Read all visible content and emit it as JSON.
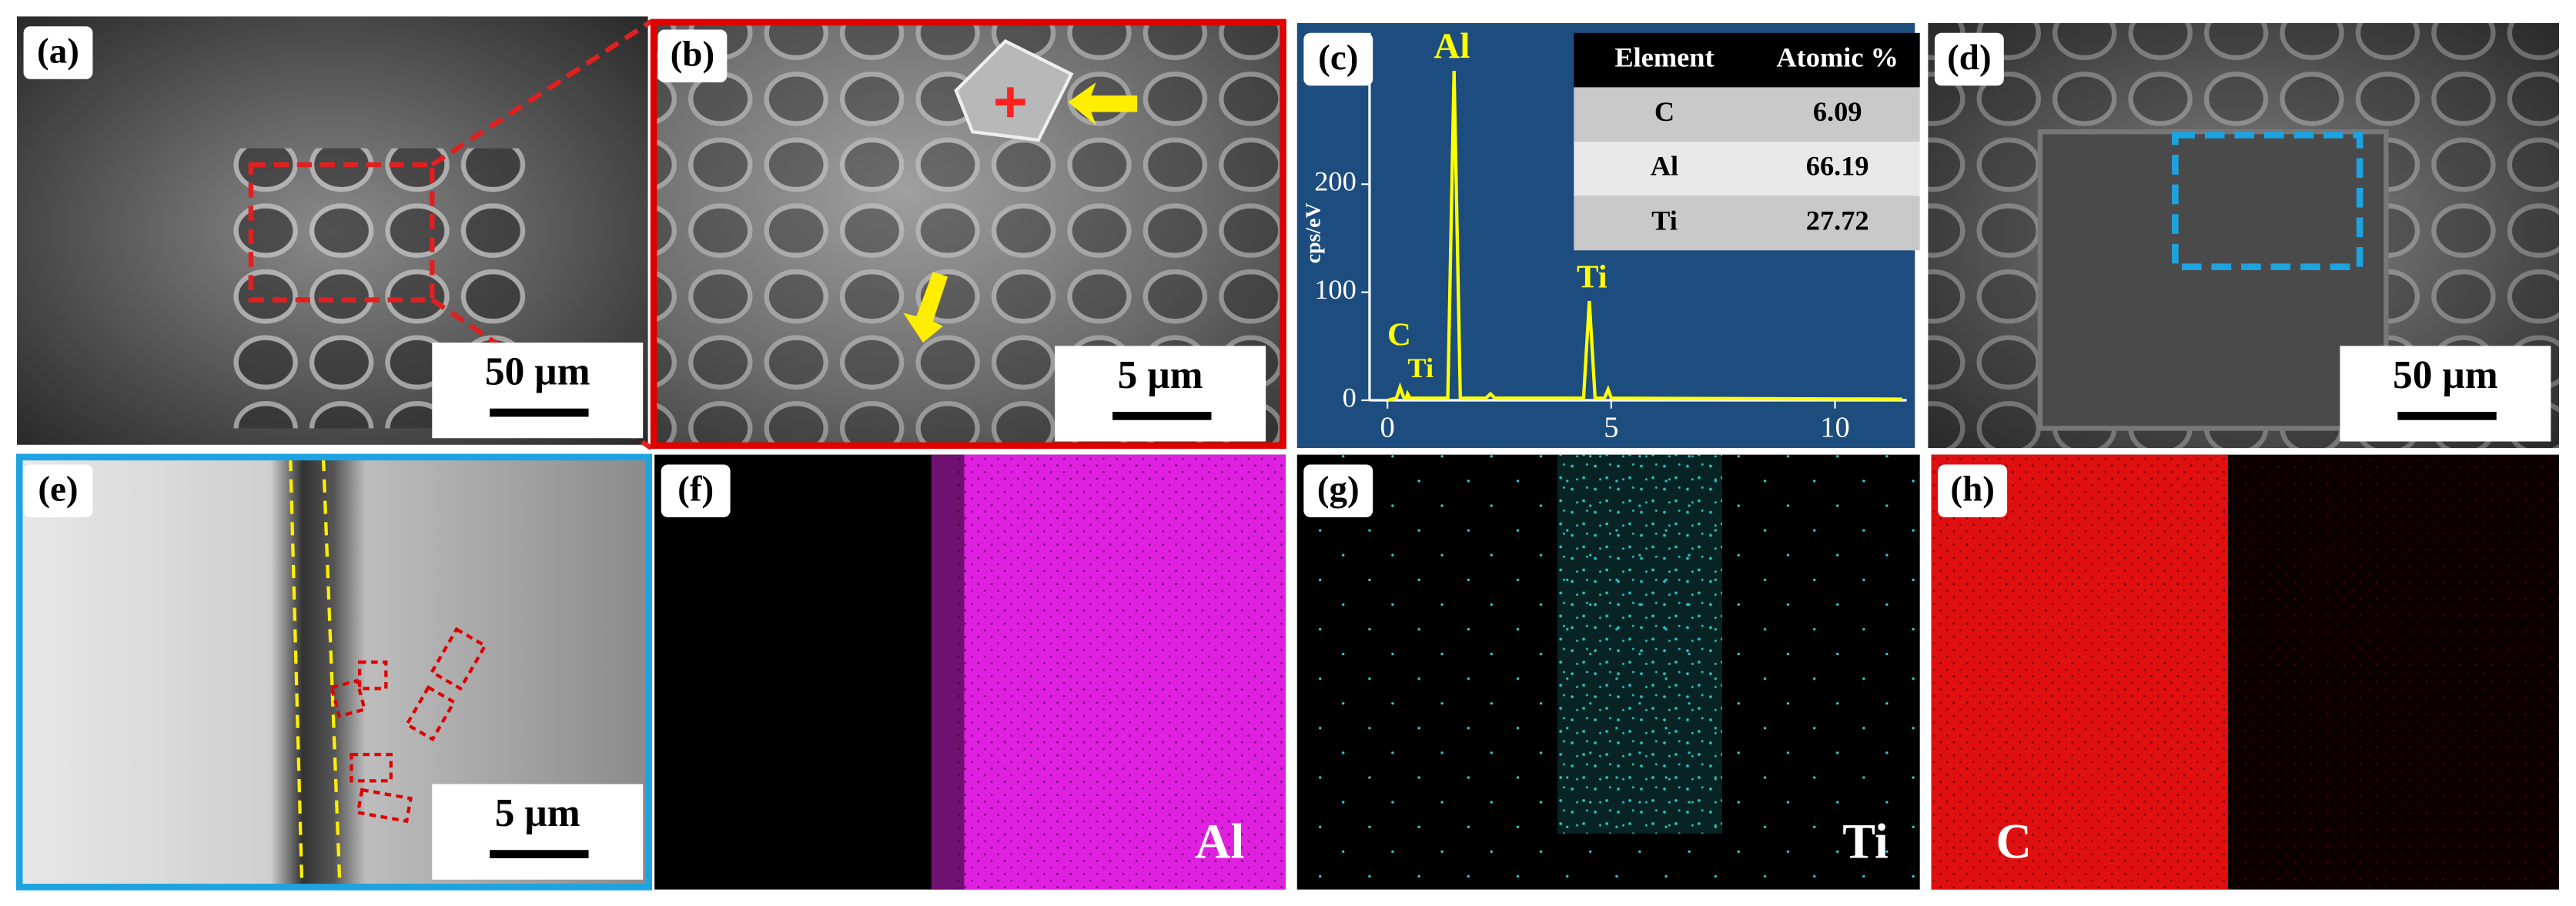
{
  "panels": [
    {
      "label": "(a)",
      "scale_bar": "50 µm"
    },
    {
      "label": "(b)",
      "scale_bar": "5 µm"
    },
    {
      "label": "(c)"
    },
    {
      "label": "(d)",
      "scale_bar": "50 µm"
    },
    {
      "label": "(e)",
      "scale_bar": "5 µm"
    },
    {
      "label": "(f)",
      "element": "Al"
    },
    {
      "label": "(g)",
      "element": "Ti"
    },
    {
      "label": "(h)",
      "element": "C"
    }
  ],
  "spectrum": {
    "type": "line",
    "y_label": "cps/eV",
    "color": "#ffff00",
    "x": [
      0,
      0.2,
      0.28,
      0.36,
      0.42,
      0.45,
      0.5,
      1.35,
      1.49,
      1.63,
      2.2,
      2.3,
      2.4,
      4.38,
      4.51,
      4.64,
      4.85,
      4.93,
      5.0,
      11.5
    ],
    "values": [
      0,
      2,
      12,
      3,
      2,
      6,
      2,
      2,
      305,
      2,
      2,
      6,
      2,
      2,
      92,
      2,
      2,
      10,
      2,
      1
    ],
    "xlim": [
      -0.4,
      11.6
    ],
    "ylim": [
      0,
      340
    ],
    "xticks": [
      0,
      5,
      10
    ],
    "yticks": [
      0,
      100,
      200
    ],
    "peak_labels": [
      "C",
      "Ti",
      "Al",
      "Ti"
    ]
  },
  "table": {
    "header": [
      "Element",
      "Atomic %"
    ],
    "rows": [
      [
        "C",
        6.09
      ],
      [
        "Al",
        66.19
      ],
      [
        "Ti",
        27.72
      ]
    ]
  }
}
